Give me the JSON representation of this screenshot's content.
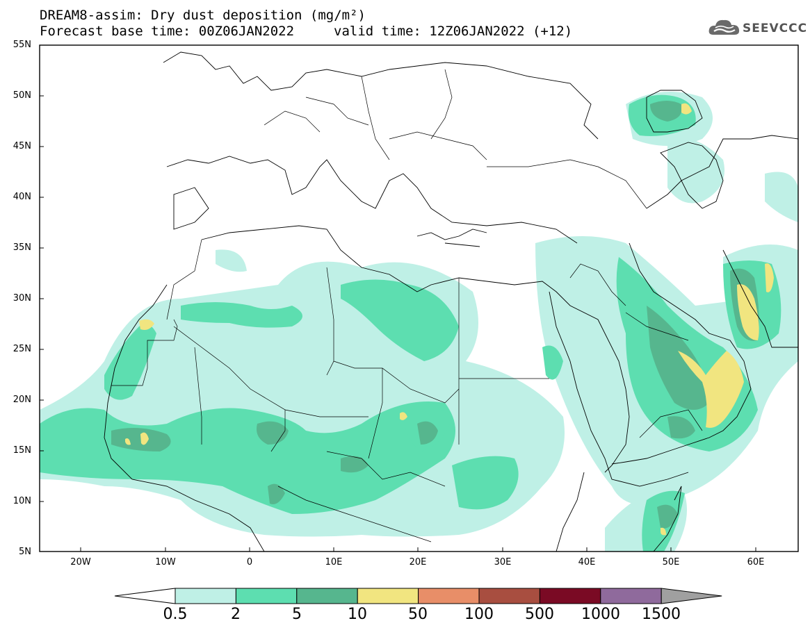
{
  "title": {
    "line1": "DREAM8-assim: Dry dust deposition (mg/m²)",
    "line2": "Forecast base time: 00Z06JAN2022",
    "line2b": "valid time: 12Z06JAN2022 (+12)"
  },
  "logo": {
    "text": "SEEVCCC",
    "icon": "cloud-icon"
  },
  "lat_labels": [
    "55N",
    "50N",
    "45N",
    "40N",
    "35N",
    "30N",
    "25N",
    "20N",
    "15N",
    "10N",
    "5N"
  ],
  "lon_labels": [
    "20W",
    "10W",
    "0",
    "10E",
    "20E",
    "30E",
    "40E",
    "50E",
    "60E"
  ],
  "colorbar": {
    "labels": [
      "0.5",
      "2",
      "5",
      "10",
      "50",
      "100",
      "500",
      "1000",
      "1500"
    ],
    "colors": [
      "#bff0e6",
      "#5ddeb0",
      "#56b68e",
      "#f1e580",
      "#e88e68",
      "#a84e40",
      "#7a0a24",
      "#8f6a9c",
      "#a0a0a0"
    ],
    "low_color": "#ffffff"
  },
  "colors": {
    "level1": "#bff0e6",
    "level2": "#5ddeb0",
    "level3": "#56b68e",
    "level4": "#f1e580",
    "border": "#000000"
  }
}
